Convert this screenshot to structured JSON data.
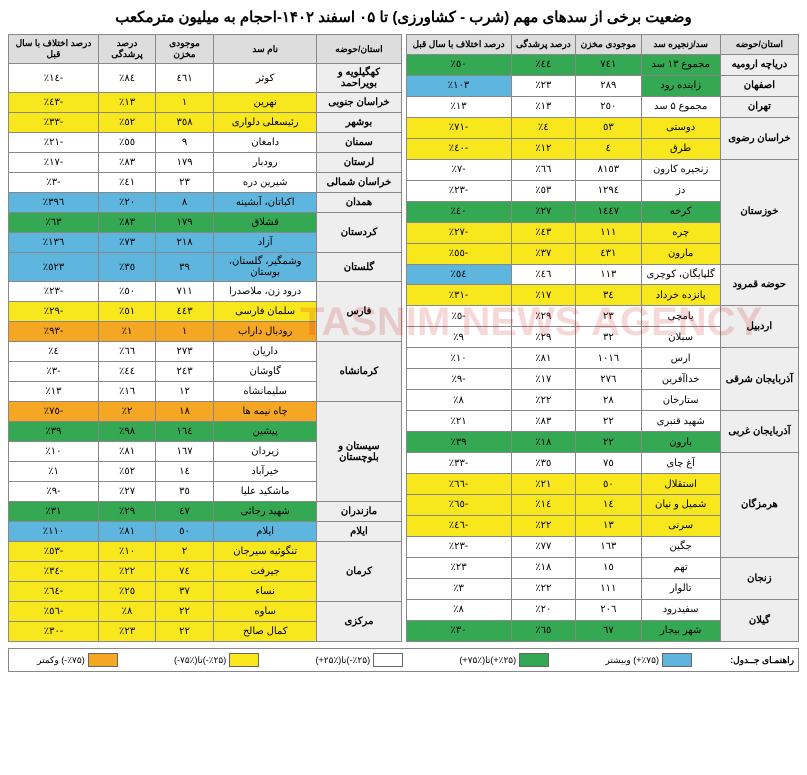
{
  "title": "وضعیت برخی از سدهای مهم (شرب - کشاورزی) تا ۰۵ اسفند ۱۴۰۲-احجام به میلیون مترمکعب",
  "headers_right": [
    "استان/حوضه",
    "سد/زنجیره سد",
    "موجودی مخزن",
    "درصد پرشدگی",
    "درصد اختلاف با سال قبل"
  ],
  "headers_left": [
    "استان/حوضه",
    "نام سد",
    "موجودی مخزن",
    "درصد پرشدگی",
    "درصد اختلاف با سال قبل"
  ],
  "colors": {
    "green": "#35a853",
    "blue": "#5eb5dd",
    "white": "#ffffff",
    "yellow": "#f8e71c",
    "orange": "#f5a623",
    "header": "#dddddd",
    "prov": "#eeeeee"
  },
  "right_rows": [
    {
      "prov": "دریاچه ارومیه",
      "rowspan": 1,
      "dam": "مجموع ۱۳ سد",
      "vol": "٧٤١",
      "fill": "٤٤٪",
      "diff": "٥٠٪",
      "dc": "green",
      "vc": "green",
      "fc": "green",
      "xc": "green"
    },
    {
      "prov": "اصفهان",
      "rowspan": 1,
      "dam": "زاینده رود",
      "vol": "٢٨٩",
      "fill": "٢٣٪",
      "diff": "١٠٣٪",
      "dc": "green",
      "vc": "white",
      "fc": "white",
      "xc": "blue"
    },
    {
      "prov": "تهران",
      "rowspan": 1,
      "dam": "مجموع ۵ سد",
      "vol": "٢٥٠",
      "fill": "١٣٪",
      "diff": "١٣٪",
      "dc": "white",
      "vc": "white",
      "fc": "white",
      "xc": "white"
    },
    {
      "prov": "خراسان رضوی",
      "rowspan": 2,
      "dam": "دوستی",
      "vol": "٥٣",
      "fill": "٤٪",
      "diff": "-٧١٪",
      "dc": "yellow",
      "vc": "yellow",
      "fc": "yellow",
      "xc": "yellow"
    },
    {
      "dam": "طرق",
      "vol": "٤",
      "fill": "١٢٪",
      "diff": "-٤٠٪",
      "dc": "yellow",
      "vc": "yellow",
      "fc": "yellow",
      "xc": "yellow"
    },
    {
      "prov": "خوزستان",
      "rowspan": 5,
      "dam": "زنجیره کارون",
      "vol": "٨١٥٣",
      "fill": "٦٦٪",
      "diff": "-٧٪",
      "dc": "white",
      "vc": "white",
      "fc": "white",
      "xc": "white"
    },
    {
      "dam": "دز",
      "vol": "١٢٩٤",
      "fill": "٥٣٪",
      "diff": "-٢٣٪",
      "dc": "white",
      "vc": "white",
      "fc": "white",
      "xc": "white"
    },
    {
      "dam": "کرخه",
      "vol": "١٤٤٧",
      "fill": "٢٧٪",
      "diff": "٤٠٪",
      "dc": "green",
      "vc": "green",
      "fc": "green",
      "xc": "green"
    },
    {
      "dam": "چره",
      "vol": "١١١",
      "fill": "٤٣٪",
      "diff": "-٢٧٪",
      "dc": "yellow",
      "vc": "yellow",
      "fc": "yellow",
      "xc": "yellow"
    },
    {
      "dam": "مارون",
      "vol": "٤٣١",
      "fill": "٣٧٪",
      "diff": "-٥٥٪",
      "dc": "yellow",
      "vc": "yellow",
      "fc": "yellow",
      "xc": "yellow"
    },
    {
      "prov": "حوضه قمرود",
      "rowspan": 2,
      "dam": "گلپایگان، کوچری",
      "vol": "١١٣",
      "fill": "٤٦٪",
      "diff": "٥٤٪",
      "dc": "white",
      "vc": "white",
      "fc": "white",
      "xc": "blue"
    },
    {
      "dam": "پانزده خرداد",
      "vol": "٣٤",
      "fill": "١٧٪",
      "diff": "-٣١٪",
      "dc": "yellow",
      "vc": "yellow",
      "fc": "yellow",
      "xc": "yellow"
    },
    {
      "prov": "اردبیل",
      "rowspan": 2,
      "dam": "یامچی",
      "vol": "٢٣",
      "fill": "٢٩٪",
      "diff": "-٥٪",
      "dc": "white",
      "vc": "white",
      "fc": "white",
      "xc": "white"
    },
    {
      "dam": "سبلان",
      "vol": "٣٢",
      "fill": "٢٩٪",
      "diff": "٩٪",
      "dc": "white",
      "vc": "white",
      "fc": "white",
      "xc": "white"
    },
    {
      "prov": "آذربایجان شرقی",
      "rowspan": 3,
      "dam": "ارس",
      "vol": "١٠١٦",
      "fill": "٨١٪",
      "diff": "١٠٪",
      "dc": "white",
      "vc": "white",
      "fc": "white",
      "xc": "white"
    },
    {
      "dam": "خداآفرین",
      "vol": "٢٧٦",
      "fill": "١٧٪",
      "diff": "-٩٪",
      "dc": "white",
      "vc": "white",
      "fc": "white",
      "xc": "white"
    },
    {
      "dam": "ستارخان",
      "vol": "٢٨",
      "fill": "٢٢٪",
      "diff": "٨٪",
      "dc": "white",
      "vc": "white",
      "fc": "white",
      "xc": "white"
    },
    {
      "prov": "آذربایجان غربی",
      "rowspan": 2,
      "dam": "شهید قنبری",
      "vol": "٢٢",
      "fill": "٨٣٪",
      "diff": "٢١٪",
      "dc": "white",
      "vc": "white",
      "fc": "white",
      "xc": "white"
    },
    {
      "dam": "بارون",
      "vol": "٢٢",
      "fill": "١٨٪",
      "diff": "٣٩٪",
      "dc": "green",
      "vc": "green",
      "fc": "green",
      "xc": "green"
    },
    {
      "prov": "هرمزگان",
      "rowspan": 5,
      "dam": "آغ چای",
      "vol": "٧٥",
      "fill": "٣٥٪",
      "diff": "-٣٣٪",
      "dc": "white",
      "vc": "white",
      "fc": "white",
      "xc": "white"
    },
    {
      "dam": "استقلال",
      "vol": "٥٠",
      "fill": "٢١٪",
      "diff": "-٦٦٪",
      "dc": "yellow",
      "vc": "yellow",
      "fc": "yellow",
      "xc": "yellow"
    },
    {
      "dam": "شمیل و نیان",
      "vol": "١٤",
      "fill": "١٤٪",
      "diff": "-٦٥٪",
      "dc": "yellow",
      "vc": "yellow",
      "fc": "yellow",
      "xc": "yellow"
    },
    {
      "dam": "سرنی",
      "vol": "١٣",
      "fill": "٢٢٪",
      "diff": "-٤٦٪",
      "dc": "yellow",
      "vc": "yellow",
      "fc": "yellow",
      "xc": "yellow"
    },
    {
      "dam": "جگین",
      "vol": "١٦٣",
      "fill": "٧٧٪",
      "diff": "-٢٣٪",
      "dc": "white",
      "vc": "white",
      "fc": "white",
      "xc": "white"
    },
    {
      "prov": "زنجان",
      "rowspan": 2,
      "dam": "تهم",
      "vol": "١٥",
      "fill": "١٨٪",
      "diff": "٢٣٪",
      "dc": "white",
      "vc": "white",
      "fc": "white",
      "xc": "white"
    },
    {
      "dam": "تالوار",
      "vol": "١١١",
      "fill": "٢٢٪",
      "diff": "٣٪",
      "dc": "white",
      "vc": "white",
      "fc": "white",
      "xc": "white"
    },
    {
      "prov": "گیلان",
      "rowspan": 2,
      "dam": "سفیدرود",
      "vol": "٢٠٦",
      "fill": "٢٠٪",
      "diff": "٨٪",
      "dc": "white",
      "vc": "white",
      "fc": "white",
      "xc": "white"
    },
    {
      "dam": "شهر بیجار",
      "vol": "٦٧",
      "fill": "٦٥٪",
      "diff": "٣٠٪",
      "dc": "green",
      "vc": "green",
      "fc": "green",
      "xc": "green"
    }
  ],
  "left_rows": [
    {
      "prov": "کهگیلویه و بویراحمد",
      "rowspan": 1,
      "dam": "کوثر",
      "vol": "٤٦١",
      "fill": "٨٤٪",
      "diff": "-١٤٪",
      "dc": "white",
      "vc": "white",
      "fc": "white",
      "xc": "white"
    },
    {
      "prov": "خراسان جنوبی",
      "rowspan": 1,
      "dam": "نهرین",
      "vol": "١",
      "fill": "١٣٪",
      "diff": "-٤٣٪",
      "dc": "yellow",
      "vc": "yellow",
      "fc": "yellow",
      "xc": "yellow"
    },
    {
      "prov": "بوشهر",
      "rowspan": 1,
      "dam": "رئیسعلی دلواری",
      "vol": "٣٥٨",
      "fill": "٥٢٪",
      "diff": "-٣٣٪",
      "dc": "yellow",
      "vc": "yellow",
      "fc": "yellow",
      "xc": "yellow"
    },
    {
      "prov": "سمنان",
      "rowspan": 1,
      "dam": "دامغان",
      "vol": "٩",
      "fill": "٥٥٪",
      "diff": "-٢١٪",
      "dc": "white",
      "vc": "white",
      "fc": "white",
      "xc": "white"
    },
    {
      "prov": "لرستان",
      "rowspan": 1,
      "dam": "رودبار",
      "vol": "١٧٩",
      "fill": "٨٣٪",
      "diff": "-١٧٪",
      "dc": "white",
      "vc": "white",
      "fc": "white",
      "xc": "white"
    },
    {
      "prov": "خراسان شمالی",
      "rowspan": 1,
      "dam": "شیرین دره",
      "vol": "٢٣",
      "fill": "٤١٪",
      "diff": "-٣٪",
      "dc": "white",
      "vc": "white",
      "fc": "white",
      "xc": "white"
    },
    {
      "prov": "همدان",
      "rowspan": 1,
      "dam": "اکباتان، آبشینه",
      "vol": "٨",
      "fill": "٢٠٪",
      "diff": "٣٩٦٪",
      "dc": "blue",
      "vc": "blue",
      "fc": "blue",
      "xc": "blue"
    },
    {
      "prov": "کردستان",
      "rowspan": 2,
      "dam": "قشلاق",
      "vol": "١٧٩",
      "fill": "٨٣٪",
      "diff": "٦٣٪",
      "dc": "green",
      "vc": "green",
      "fc": "green",
      "xc": "green"
    },
    {
      "dam": "آزاد",
      "vol": "٢١٨",
      "fill": "٧٣٪",
      "diff": "١٣٦٪",
      "dc": "blue",
      "vc": "blue",
      "fc": "blue",
      "xc": "blue"
    },
    {
      "prov": "گلستان",
      "rowspan": 1,
      "dam": "وشمگیر، گلستان، بوستان",
      "vol": "٣٩",
      "fill": "٣٥٪",
      "diff": "٥٢٣٪",
      "dc": "blue",
      "vc": "blue",
      "fc": "blue",
      "xc": "blue"
    },
    {
      "prov": "فارس",
      "rowspan": 3,
      "dam": "درود زن، ملاصدرا",
      "vol": "٧١١",
      "fill": "٥٠٪",
      "diff": "-٢٣٪",
      "dc": "white",
      "vc": "white",
      "fc": "white",
      "xc": "white"
    },
    {
      "dam": "سلمان فارسی",
      "vol": "٤٤٣",
      "fill": "٥١٪",
      "diff": "-٢٩٪",
      "dc": "yellow",
      "vc": "yellow",
      "fc": "yellow",
      "xc": "yellow"
    },
    {
      "dam": "رودبال داراب",
      "vol": "١",
      "fill": "١٪",
      "diff": "-٩٣٪",
      "dc": "orange",
      "vc": "orange",
      "fc": "orange",
      "xc": "orange"
    },
    {
      "prov": "کرمانشاه",
      "rowspan": 3,
      "dam": "داریان",
      "vol": "٢٧٣",
      "fill": "٦٦٪",
      "diff": "٤٪",
      "dc": "white",
      "vc": "white",
      "fc": "white",
      "xc": "white"
    },
    {
      "dam": "گاوشان",
      "vol": "٢٤٣",
      "fill": "٤٤٪",
      "diff": "-٣٪",
      "dc": "white",
      "vc": "white",
      "fc": "white",
      "xc": "white"
    },
    {
      "dam": "سلیمانشاه",
      "vol": "١٢",
      "fill": "١٦٪",
      "diff": "١٣٪",
      "dc": "white",
      "vc": "white",
      "fc": "white",
      "xc": "white"
    },
    {
      "prov": "سیستان و بلوچستان",
      "rowspan": 5,
      "dam": "چاه نیمه ها",
      "vol": "١٨",
      "fill": "٢٪",
      "diff": "-٧٥٪",
      "dc": "orange",
      "vc": "orange",
      "fc": "orange",
      "xc": "orange"
    },
    {
      "dam": "پیشین",
      "vol": "١٦٤",
      "fill": "٩٨٪",
      "diff": "٣٩٪",
      "dc": "green",
      "vc": "green",
      "fc": "green",
      "xc": "green"
    },
    {
      "dam": "زیردان",
      "vol": "١٦٧",
      "fill": "٨١٪",
      "diff": "١٠٪",
      "dc": "white",
      "vc": "white",
      "fc": "white",
      "xc": "white"
    },
    {
      "dam": "خیرآباد",
      "vol": "١٤",
      "fill": "٥٢٪",
      "diff": "١٪",
      "dc": "white",
      "vc": "white",
      "fc": "white",
      "xc": "white"
    },
    {
      "dam": "ماشکید علیا",
      "vol": "٣٥",
      "fill": "٢٧٪",
      "diff": "-٩٪",
      "dc": "white",
      "vc": "white",
      "fc": "white",
      "xc": "white"
    },
    {
      "prov": "مازندران",
      "rowspan": 1,
      "dam": "شهید رجائی",
      "vol": "٤٧",
      "fill": "٢٩٪",
      "diff": "٣١٪",
      "dc": "green",
      "vc": "green",
      "fc": "green",
      "xc": "green"
    },
    {
      "prov": "ایلام",
      "rowspan": 1,
      "dam": "ایلام",
      "vol": "٥٠",
      "fill": "٨١٪",
      "diff": "١١٠٪",
      "dc": "blue",
      "vc": "blue",
      "fc": "blue",
      "xc": "blue"
    },
    {
      "prov": "کرمان",
      "rowspan": 3,
      "dam": "تنگوئیه سیرجان",
      "vol": "٢",
      "fill": "١٠٪",
      "diff": "-٥٣٪",
      "dc": "yellow",
      "vc": "yellow",
      "fc": "yellow",
      "xc": "yellow"
    },
    {
      "dam": "جیرفت",
      "vol": "٧٤",
      "fill": "٢٢٪",
      "diff": "-٣٤٪",
      "dc": "yellow",
      "vc": "yellow",
      "fc": "yellow",
      "xc": "yellow"
    },
    {
      "dam": "نساء",
      "vol": "٣٧",
      "fill": "٢٥٪",
      "diff": "-٦٤٪",
      "dc": "yellow",
      "vc": "yellow",
      "fc": "yellow",
      "xc": "yellow"
    },
    {
      "prov": "مرکزی",
      "rowspan": 2,
      "dam": "ساوه",
      "vol": "٢٢",
      "fill": "٨٪",
      "diff": "-٥٦٪",
      "dc": "yellow",
      "vc": "yellow",
      "fc": "yellow",
      "xc": "yellow"
    },
    {
      "dam": "کمال صالح",
      "vol": "٢٢",
      "fill": "٢٣٪",
      "diff": "-٣٠٪",
      "dc": "yellow",
      "vc": "yellow",
      "fc": "yellow",
      "xc": "yellow"
    }
  ],
  "legend": {
    "title": "راهنمـای جــدول:",
    "items": [
      {
        "label": "(٪۷۵+) وبیشتر",
        "color": "blue"
      },
      {
        "label": "(٪۲۵+)تا(٪۷۵+)",
        "color": "green"
      },
      {
        "label": "(٪۲۵-)تا(٪۲۵+)",
        "color": "white"
      },
      {
        "label": "(٪۲۵-)تا(٪۷۵-)",
        "color": "yellow"
      },
      {
        "label": "(٪۷۵-) وکمتر",
        "color": "orange"
      }
    ]
  },
  "watermark": "TASNIM NEWS AGENCY"
}
